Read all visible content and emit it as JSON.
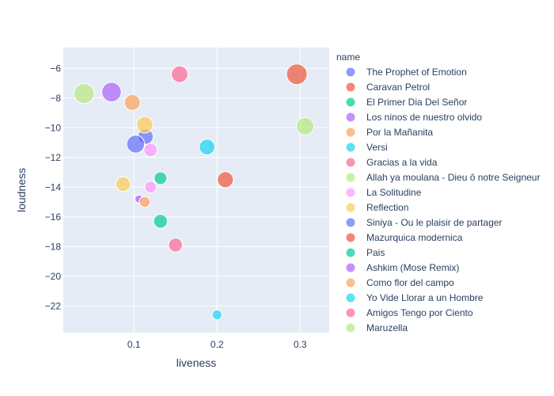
{
  "chart_data": {
    "type": "scatter",
    "title": "",
    "xlabel": "liveness",
    "ylabel": "loudness",
    "xlim": [
      0.015,
      0.335
    ],
    "ylim": [
      -23.8,
      -4.6
    ],
    "xticks": [
      0.1,
      0.2,
      0.3
    ],
    "xtick_labels": [
      "0.1",
      "0.2",
      "0.3"
    ],
    "yticks": [
      -6,
      -8,
      -10,
      -12,
      -14,
      -16,
      -18,
      -20,
      -22
    ],
    "ytick_labels": [
      "−6",
      "−8",
      "−10",
      "−12",
      "−14",
      "−16",
      "−18",
      "−20",
      "−22"
    ],
    "grid": true,
    "legend_title": "name",
    "legend_position": "right",
    "series": [
      {
        "name": "The Prophet of Emotion",
        "color": "#636efa",
        "points": [
          {
            "x": 0.114,
            "y": -10.6,
            "size": 0.55
          },
          {
            "x": 0.102,
            "y": -11.1,
            "size": 0.75
          }
        ]
      },
      {
        "name": "Caravan Petrol",
        "color": "#EF553B",
        "points": [
          {
            "x": 0.296,
            "y": -6.4,
            "size": 1.0
          }
        ]
      },
      {
        "name": "El Primer Dia Del Señor",
        "color": "#00cc96",
        "points": [
          {
            "x": 0.132,
            "y": -13.4,
            "size": 0.38
          }
        ]
      },
      {
        "name": "Los ninos de nuestro olvido",
        "color": "#ab63fa",
        "points": [
          {
            "x": 0.073,
            "y": -7.6,
            "size": 0.9
          }
        ]
      },
      {
        "name": "Por la Mañanita",
        "color": "#FFA15A",
        "points": [
          {
            "x": 0.098,
            "y": -8.3,
            "size": 0.6
          }
        ]
      },
      {
        "name": "Versi",
        "color": "#19d3f3",
        "points": [
          {
            "x": 0.188,
            "y": -11.3,
            "size": 0.58
          }
        ]
      },
      {
        "name": "Gracias a la vida",
        "color": "#FF6692",
        "points": [
          {
            "x": 0.155,
            "y": -6.4,
            "size": 0.65
          }
        ]
      },
      {
        "name": "Allah ya moulana - Dieu ô notre Seigneur",
        "color": "#B6E880",
        "points": [
          {
            "x": 0.04,
            "y": -7.7,
            "size": 0.95
          },
          {
            "x": 0.306,
            "y": -9.9,
            "size": 0.72
          }
        ]
      },
      {
        "name": "La Solitudine",
        "color": "#FF97FF",
        "points": [
          {
            "x": 0.12,
            "y": -11.5,
            "size": 0.42
          },
          {
            "x": 0.12,
            "y": -14.0,
            "size": 0.33
          }
        ]
      },
      {
        "name": "Reflection",
        "color": "#FECB52",
        "points": [
          {
            "x": 0.113,
            "y": -9.8,
            "size": 0.64
          },
          {
            "x": 0.087,
            "y": -13.8,
            "size": 0.5
          }
        ]
      },
      {
        "name": "Siniya - Ou le plaisir de partager",
        "color": "#636efa",
        "points": []
      },
      {
        "name": "Mazurquica modernica",
        "color": "#EF553B",
        "points": [
          {
            "x": 0.21,
            "y": -13.5,
            "size": 0.6
          }
        ]
      },
      {
        "name": "Pais",
        "color": "#00cc96",
        "points": [
          {
            "x": 0.132,
            "y": -16.3,
            "size": 0.45
          }
        ]
      },
      {
        "name": "Ashkim (Mose Remix)",
        "color": "#ab63fa",
        "points": [
          {
            "x": 0.106,
            "y": -14.8,
            "size": 0.15
          }
        ]
      },
      {
        "name": "Como flor del campo",
        "color": "#FFA15A",
        "points": [
          {
            "x": 0.113,
            "y": -15.0,
            "size": 0.28
          }
        ]
      },
      {
        "name": "Yo Vide Llorar a un Hombre",
        "color": "#19d3f3",
        "points": [
          {
            "x": 0.2,
            "y": -22.6,
            "size": 0.22
          }
        ]
      },
      {
        "name": "Amigos Tengo por Ciento",
        "color": "#FF6692",
        "points": [
          {
            "x": 0.15,
            "y": -17.9,
            "size": 0.45
          }
        ]
      },
      {
        "name": "Maruzella",
        "color": "#B6E880",
        "points": []
      }
    ]
  }
}
